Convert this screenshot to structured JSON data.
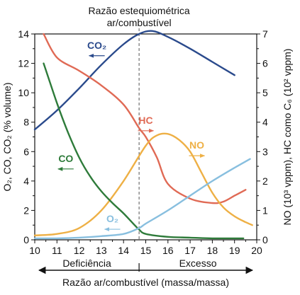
{
  "chart_data": {
    "type": "line",
    "title": "",
    "annotation_line1": "Razão estequiométrica",
    "annotation_line2": "ar/combustível",
    "stoich_ratio": 14.7,
    "xlabel": "Razão ar/combustível (massa/massa)",
    "ylabel_left": "O₂, CO, CO₂ (% volume)",
    "ylabel_right": "NO (10³ vppm), HC como C₆ (10² vppm)",
    "region_left": "Deficiência",
    "region_right": "Excesso",
    "xlim": [
      10,
      20
    ],
    "ylim_left": [
      0,
      14
    ],
    "ylim_right": [
      0,
      7
    ],
    "x_ticks": [
      "10",
      "11",
      "12",
      "13",
      "14",
      "15",
      "16",
      "17",
      "18",
      "19",
      "20"
    ],
    "y_ticks_left": [
      "0",
      "2",
      "4",
      "6",
      "8",
      "10",
      "12",
      "14"
    ],
    "y_ticks_right": [
      "0",
      "1",
      "2",
      "3",
      "4",
      "5",
      "6",
      "7"
    ],
    "series": [
      {
        "name": "CO₂",
        "axis": "left",
        "color": "#2a4a8c",
        "label_pos": [
          12.8,
          13.0
        ],
        "arrow": "left",
        "points": [
          [
            10,
            7.5
          ],
          [
            11,
            8.8
          ],
          [
            12,
            10.3
          ],
          [
            13,
            11.9
          ],
          [
            14,
            13.3
          ],
          [
            14.7,
            14.0
          ],
          [
            15.3,
            14.2
          ],
          [
            16,
            13.8
          ],
          [
            17,
            13.0
          ],
          [
            18,
            12.1
          ],
          [
            19,
            11.2
          ]
        ]
      },
      {
        "name": "HC",
        "axis": "right",
        "color": "#e06a55",
        "label_pos": [
          15.0,
          3.95
        ],
        "arrow": "right",
        "points": [
          [
            10.4,
            7.0
          ],
          [
            11,
            6.2
          ],
          [
            12,
            5.75
          ],
          [
            13,
            5.25
          ],
          [
            14,
            4.6
          ],
          [
            14.7,
            3.8
          ],
          [
            15,
            3.5
          ],
          [
            15.5,
            2.8
          ],
          [
            16,
            1.9
          ],
          [
            17,
            1.4
          ],
          [
            18,
            1.25
          ],
          [
            18.5,
            1.3
          ],
          [
            19,
            1.5
          ],
          [
            19.5,
            1.7
          ]
        ]
      },
      {
        "name": "NO",
        "axis": "right",
        "color": "#eeb045",
        "label_pos": [
          17.3,
          3.1
        ],
        "arrow": "right",
        "points": [
          [
            10,
            0.15
          ],
          [
            11,
            0.2
          ],
          [
            12,
            0.4
          ],
          [
            13,
            1.0
          ],
          [
            14,
            2.0
          ],
          [
            15,
            3.2
          ],
          [
            15.5,
            3.55
          ],
          [
            16,
            3.6
          ],
          [
            16.5,
            3.4
          ],
          [
            17,
            3.0
          ],
          [
            17.5,
            2.3
          ],
          [
            18,
            1.6
          ],
          [
            18.5,
            1.1
          ],
          [
            19,
            0.8
          ],
          [
            19.5,
            0.6
          ],
          [
            19.8,
            0.5
          ]
        ]
      },
      {
        "name": "CO",
        "axis": "left",
        "color": "#2e7b3a",
        "label_pos": [
          11.4,
          5.3
        ],
        "arrow": "left",
        "points": [
          [
            10.4,
            12.0
          ],
          [
            11,
            9.3
          ],
          [
            11.5,
            7.3
          ],
          [
            12,
            5.6
          ],
          [
            12.5,
            4.3
          ],
          [
            13,
            3.3
          ],
          [
            13.5,
            2.5
          ],
          [
            14,
            1.8
          ],
          [
            14.5,
            1.0
          ],
          [
            14.7,
            0.7
          ],
          [
            15,
            0.4
          ],
          [
            16,
            0.2
          ],
          [
            17,
            0.15
          ],
          [
            18,
            0.1
          ],
          [
            19.4,
            0.1
          ]
        ]
      },
      {
        "name": "O₂",
        "axis": "left",
        "color": "#88bfdf",
        "label_pos": [
          13.5,
          1.2
        ],
        "arrow": "left",
        "points": [
          [
            10,
            0.1
          ],
          [
            11,
            0.1
          ],
          [
            12,
            0.15
          ],
          [
            13,
            0.25
          ],
          [
            14,
            0.4
          ],
          [
            14.7,
            0.8
          ],
          [
            15,
            1.1
          ],
          [
            16,
            2.0
          ],
          [
            17,
            3.0
          ],
          [
            18,
            4.0
          ],
          [
            19,
            4.9
          ],
          [
            19.7,
            5.5
          ]
        ]
      }
    ],
    "grid": false,
    "legend": "none"
  }
}
